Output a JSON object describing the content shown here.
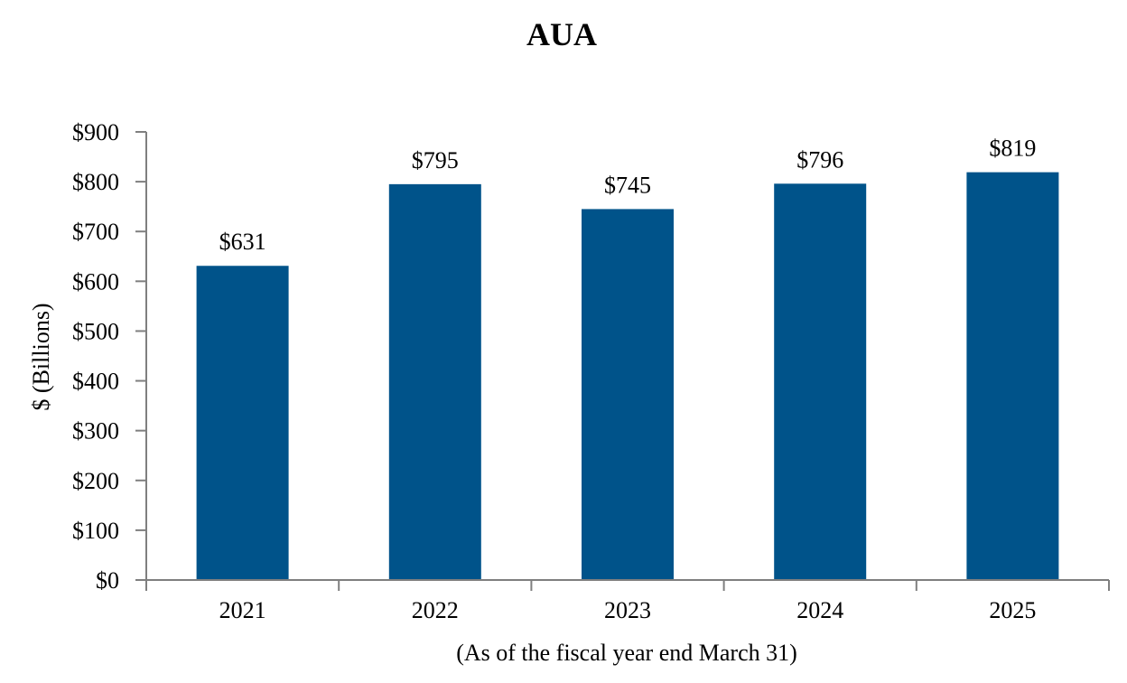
{
  "chart_data": {
    "type": "bar",
    "title": "AUA",
    "xlabel": "(As of the fiscal year end March 31)",
    "ylabel": "$ (Billions)",
    "categories": [
      "2021",
      "2022",
      "2023",
      "2024",
      "2025"
    ],
    "values": [
      631,
      795,
      745,
      796,
      819
    ],
    "data_labels": [
      "$631",
      "$795",
      "$745",
      "$796",
      "$819"
    ],
    "ylim": [
      0,
      900
    ],
    "yticks": [
      0,
      100,
      200,
      300,
      400,
      500,
      600,
      700,
      800,
      900
    ],
    "ytick_labels": [
      "$0",
      "$100",
      "$200",
      "$300",
      "$400",
      "$500",
      "$600",
      "$700",
      "$800",
      "$900"
    ],
    "grid": false,
    "legend": "none",
    "colors": {
      "bar": "#00538A",
      "axis": "#7F7F7F"
    }
  }
}
